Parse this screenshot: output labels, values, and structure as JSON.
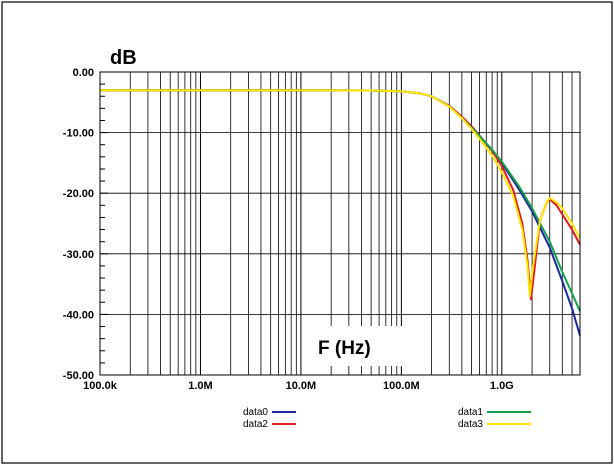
{
  "chart_data": {
    "type": "line",
    "xlabel": "F (Hz)",
    "ylabel": "dB",
    "xscale": "log",
    "xlim": [
      100000,
      6000000000
    ],
    "ylim": [
      -50,
      0
    ],
    "grid": true,
    "x_ticks": [
      {
        "value": 100000,
        "label": "100.0k"
      },
      {
        "value": 1000000,
        "label": "1.0M"
      },
      {
        "value": 10000000,
        "label": "10.0M"
      },
      {
        "value": 100000000,
        "label": "100.0M"
      },
      {
        "value": 1000000000,
        "label": "1.0G"
      }
    ],
    "y_ticks": [
      {
        "value": 0,
        "label": "0.00"
      },
      {
        "value": -10,
        "label": "-10.00"
      },
      {
        "value": -20,
        "label": "-20.00"
      },
      {
        "value": -30,
        "label": "-30.00"
      },
      {
        "value": -40,
        "label": "-40.00"
      },
      {
        "value": -50,
        "label": "-50.00"
      }
    ],
    "legend_placement": "bottom",
    "series": [
      {
        "name": "data0",
        "color": "#1c2a9c",
        "x": [
          100000,
          1000000,
          10000000,
          50000000,
          100000000,
          150000000,
          200000000,
          300000000,
          400000000,
          500000000,
          600000000,
          800000000,
          1000000000,
          1500000000,
          2000000000,
          3000000000,
          4000000000,
          5000000000,
          6000000000
        ],
        "y": [
          -3.0,
          -3.0,
          -3.0,
          -3.05,
          -3.2,
          -3.5,
          -4.0,
          -5.6,
          -7.4,
          -9.0,
          -10.5,
          -13.0,
          -15.0,
          -19.5,
          -23.0,
          -29.0,
          -34.5,
          -39.0,
          -43.5
        ]
      },
      {
        "name": "data2",
        "color": "#e01b23",
        "x": [
          100000,
          1000000,
          10000000,
          50000000,
          100000000,
          150000000,
          200000000,
          300000000,
          400000000,
          500000000,
          600000000,
          800000000,
          1000000000,
          1300000000,
          1600000000,
          1800000000,
          1950000000,
          2100000000,
          2400000000,
          2800000000,
          3000000000,
          3500000000,
          4000000000,
          5000000000,
          6000000000
        ],
        "y": [
          -3.0,
          -3.0,
          -3.0,
          -3.05,
          -3.2,
          -3.5,
          -4.0,
          -5.6,
          -7.4,
          -9.0,
          -10.5,
          -13.0,
          -15.5,
          -19.5,
          -25.0,
          -31.0,
          -37.5,
          -33.0,
          -24.5,
          -21.5,
          -21.0,
          -22.0,
          -23.5,
          -26.0,
          -28.5
        ]
      },
      {
        "name": "data1",
        "color": "#14a04a",
        "x": [
          100000,
          1000000,
          10000000,
          50000000,
          100000000,
          150000000,
          200000000,
          300000000,
          400000000,
          500000000,
          600000000,
          800000000,
          1000000000,
          1500000000,
          2000000000,
          3000000000,
          4000000000,
          5000000000,
          6000000000
        ],
        "y": [
          -3.0,
          -3.0,
          -3.0,
          -3.05,
          -3.2,
          -3.5,
          -4.0,
          -5.7,
          -7.6,
          -9.2,
          -10.6,
          -12.8,
          -14.8,
          -19.0,
          -22.5,
          -28.0,
          -33.0,
          -36.5,
          -39.5
        ]
      },
      {
        "name": "data3",
        "color": "#ffe600",
        "x": [
          100000,
          1000000,
          10000000,
          50000000,
          100000000,
          150000000,
          200000000,
          300000000,
          400000000,
          500000000,
          600000000,
          800000000,
          1000000000,
          1300000000,
          1600000000,
          1800000000,
          1900000000,
          2050000000,
          2400000000,
          2800000000,
          3000000000,
          3500000000,
          4000000000,
          5000000000,
          6000000000
        ],
        "y": [
          -3.0,
          -3.0,
          -3.0,
          -3.05,
          -3.2,
          -3.5,
          -4.0,
          -5.7,
          -7.6,
          -9.4,
          -11.0,
          -13.8,
          -16.5,
          -20.5,
          -26.0,
          -32.0,
          -37.0,
          -32.0,
          -24.5,
          -21.5,
          -20.8,
          -21.5,
          -22.5,
          -25.0,
          -27.5
        ]
      }
    ]
  }
}
